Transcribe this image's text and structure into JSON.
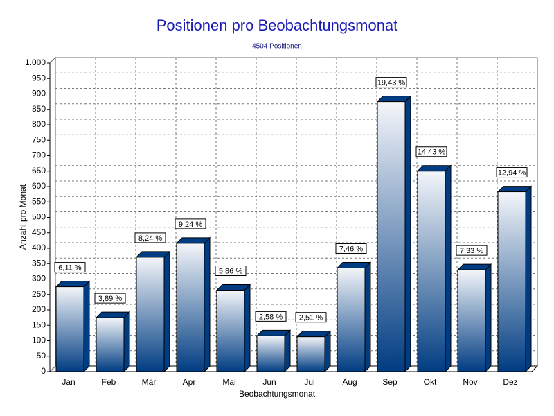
{
  "chart_data": {
    "type": "bar",
    "title": "Positionen pro Beobachtungsmonat",
    "subtitle": "4504 Positionen",
    "x_label": "Beobachtungsmonat",
    "y_label": "Anzahl pro Monat",
    "categories": [
      "Jan",
      "Feb",
      "Mär",
      "Apr",
      "Mai",
      "Jun",
      "Jul",
      "Aug",
      "Sep",
      "Okt",
      "Nov",
      "Dez"
    ],
    "values": [
      275,
      175,
      371,
      416,
      264,
      116,
      113,
      336,
      875,
      650,
      330,
      583
    ],
    "value_labels": [
      "6,11 %",
      "3,89 %",
      "8,24 %",
      "9,24 %",
      "5,86 %",
      "2,58 %",
      "2,51 %",
      "7,46 %",
      "19,43 %",
      "14,43 %",
      "7,33 %",
      "12,94 %"
    ],
    "color": "#003c82",
    "ylim": [
      0,
      1000
    ],
    "yticks": [
      0,
      50,
      100,
      150,
      200,
      250,
      300,
      350,
      400,
      450,
      500,
      550,
      600,
      650,
      700,
      750,
      800,
      850,
      900,
      950,
      {
        "value": 1000,
        "label": "1.000"
      }
    ],
    "grid": true
  }
}
